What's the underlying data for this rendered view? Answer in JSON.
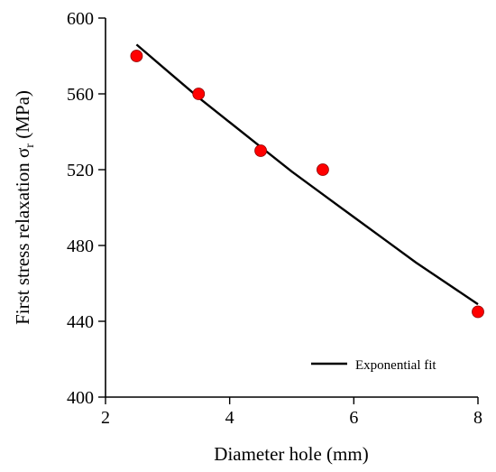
{
  "chart_data": {
    "type": "scatter",
    "xlabel": "Diameter hole (mm)",
    "ylabel": "First stress relaxation σ",
    "ylabel_subscript": "r",
    "ylabel_unit": " (MPa)",
    "xlim": [
      2,
      8
    ],
    "ylim": [
      400,
      600
    ],
    "xticks": [
      2,
      4,
      6,
      8
    ],
    "yticks": [
      400,
      440,
      480,
      520,
      560,
      600
    ],
    "grid": false,
    "legend_position": "bottom-right",
    "series": [
      {
        "kind": "points",
        "color": "#ff0000",
        "x": [
          2.5,
          3.5,
          4.5,
          5.5,
          8
        ],
        "y": [
          580,
          560,
          530,
          520,
          445
        ]
      },
      {
        "kind": "line",
        "name": "Exponential fit",
        "color": "#000000",
        "x": [
          2.5,
          3.0,
          3.5,
          4.0,
          4.5,
          5.0,
          5.5,
          6.0,
          6.5,
          7.0,
          7.5,
          8.0
        ],
        "y": [
          586,
          572,
          558,
          545,
          532,
          519,
          507,
          495,
          483,
          471,
          460,
          449
        ]
      }
    ]
  }
}
